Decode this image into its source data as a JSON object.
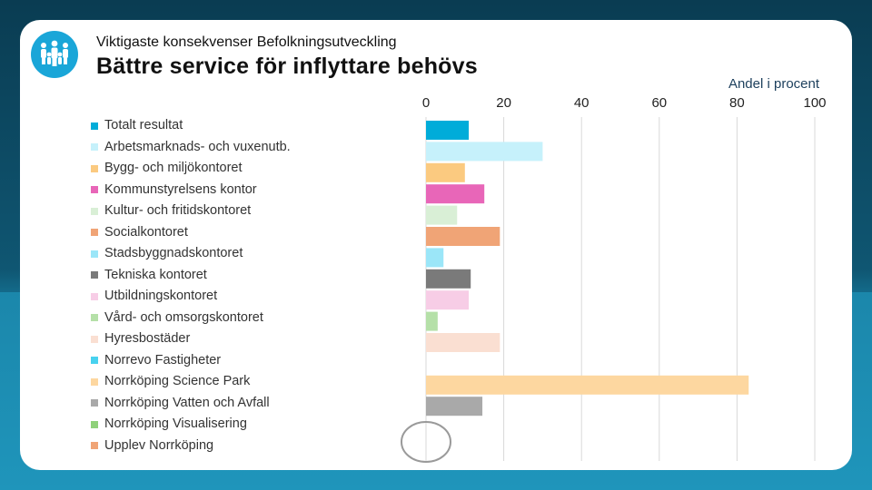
{
  "header": {
    "subtitle": "Viktigaste konsekvenser Befolkningsutveckling",
    "title": "Bättre service för inflyttare behövs"
  },
  "chart_data": {
    "type": "bar",
    "orientation": "horizontal",
    "ylabel": "Andel i procent",
    "xlim": [
      0,
      100
    ],
    "ticks": [
      "0",
      "20",
      "40",
      "60",
      "80",
      "100"
    ],
    "grid": true,
    "legend_position": "left",
    "categories": [
      "Totalt resultat",
      "Arbetsmarknads- och vuxenutb.",
      "Bygg- och miljökontoret",
      "Kommunstyrelsens kontor",
      "Kultur- och fritidskontoret",
      "Socialkontoret",
      "Stadsbyggnadskontoret",
      "Tekniska kontoret",
      "Utbildningskontoret",
      "Vård- och omsorgskontoret",
      "Hyresbostäder",
      "Norrevo Fastigheter",
      "Norrköping Science Park",
      "Norrköping Vatten och Avfall",
      "Norrköping Visualisering",
      "Upplev Norrköping"
    ],
    "values": [
      11,
      30,
      10,
      15,
      8,
      19,
      4.5,
      11.5,
      11,
      3,
      19,
      0,
      83,
      14.5,
      0,
      0
    ],
    "colors": [
      "#00acd9",
      "#c6f1fb",
      "#fbca80",
      "#e866b8",
      "#d9efd6",
      "#f0a476",
      "#9be6f8",
      "#7a7a7a",
      "#f7cde6",
      "#b5e0a8",
      "#fadfd2",
      "#48d2ef",
      "#fdd7a0",
      "#a9a9a9",
      "#8fd17a",
      "#f0a476"
    ]
  }
}
